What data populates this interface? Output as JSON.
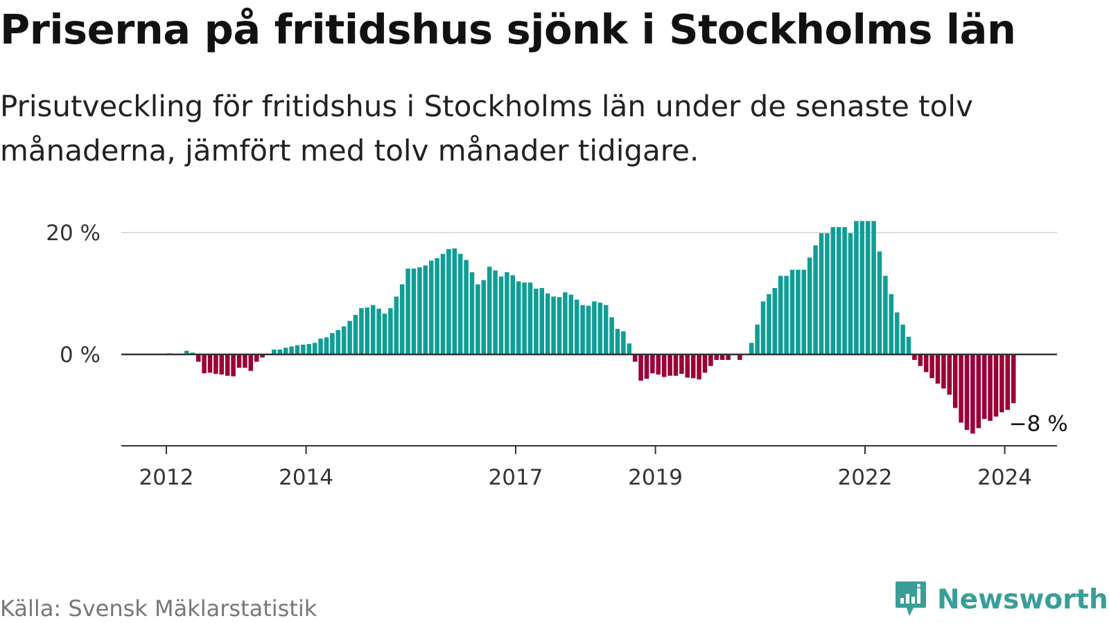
{
  "title": "Priserna på fritidshus sjönk i Stockholms län",
  "subtitle": "Prisutveckling för fritidshus i Stockholms län under de senaste tolv månaderna, jämfört med tolv månader tidigare.",
  "source": "Källa: Svensk Mäklarstatistik",
  "brand": "Newsworthy",
  "colors": {
    "positive": "#0f9e95",
    "negative": "#990038",
    "brand": "#3a9e98"
  },
  "chart_data": {
    "type": "bar",
    "title": "Priserna på fritidshus sjönk i Stockholms län",
    "xlabel": "",
    "ylabel": "",
    "ylim": [
      -15,
      22
    ],
    "y_ticks": [
      {
        "value": 0,
        "label": "0 %"
      },
      {
        "value": 20,
        "label": "20 %"
      }
    ],
    "x_ticks": [
      {
        "year": 2012,
        "label": "2012"
      },
      {
        "year": 2014,
        "label": "2014"
      },
      {
        "year": 2017,
        "label": "2017"
      },
      {
        "year": 2019,
        "label": "2019"
      },
      {
        "year": 2022,
        "label": "2022"
      },
      {
        "year": 2024,
        "label": "2024"
      }
    ],
    "start": {
      "year": 2011,
      "month": 1
    },
    "end_label": "−8 %",
    "series": [
      {
        "name": "Prisutveckling",
        "values": [
          0,
          0,
          0,
          0,
          0,
          0,
          0,
          0,
          0,
          0,
          0,
          0,
          0.2,
          0,
          0,
          0.6,
          0.3,
          -1.2,
          -3.1,
          -3.0,
          -3.2,
          -3.3,
          -3.5,
          -3.6,
          -2.2,
          -2.2,
          -2.7,
          -1.2,
          -0.5,
          0,
          0.8,
          0.8,
          1.1,
          1.3,
          1.5,
          1.6,
          1.7,
          1.9,
          2.6,
          2.8,
          3.5,
          4.0,
          4.6,
          5.5,
          6.5,
          7.6,
          7.7,
          8.1,
          7.5,
          6.7,
          7.6,
          9.5,
          11.5,
          14.1,
          14.1,
          14.3,
          14.6,
          15.4,
          15.8,
          16.5,
          17.3,
          17.4,
          16.5,
          15.5,
          13.5,
          11.5,
          12.2,
          14.4,
          13.8,
          12.8,
          13.5,
          13.0,
          12.0,
          11.8,
          11.8,
          10.8,
          10.9,
          10.0,
          9.5,
          9.4,
          10.2,
          9.8,
          9.0,
          8.1,
          8.0,
          8.7,
          8.5,
          8.1,
          6.1,
          4.2,
          3.8,
          1.8,
          -1.2,
          -4.3,
          -4.0,
          -3.1,
          -3.3,
          -3.7,
          -3.5,
          -3.5,
          -3.2,
          -3.8,
          -3.9,
          -4.1,
          -3.0,
          -1.9,
          -0.9,
          -0.9,
          -0.9,
          0,
          -0.9,
          0,
          1.9,
          4.9,
          8.7,
          9.9,
          10.9,
          12.9,
          12.9,
          13.9,
          13.9,
          13.9,
          15.9,
          17.9,
          19.9,
          19.9,
          20.9,
          20.9,
          20.9,
          19.9,
          21.9,
          21.9,
          21.9,
          21.9,
          16.9,
          12.9,
          9.9,
          6.9,
          4.9,
          2.9,
          -0.9,
          -1.9,
          -2.9,
          -3.9,
          -4.8,
          -5.6,
          -6.6,
          -8.8,
          -11.2,
          -12.4,
          -13.0,
          -12.1,
          -10.6,
          -10.9,
          -10.2,
          -9.5,
          -9.1,
          -8.0
        ]
      }
    ]
  }
}
